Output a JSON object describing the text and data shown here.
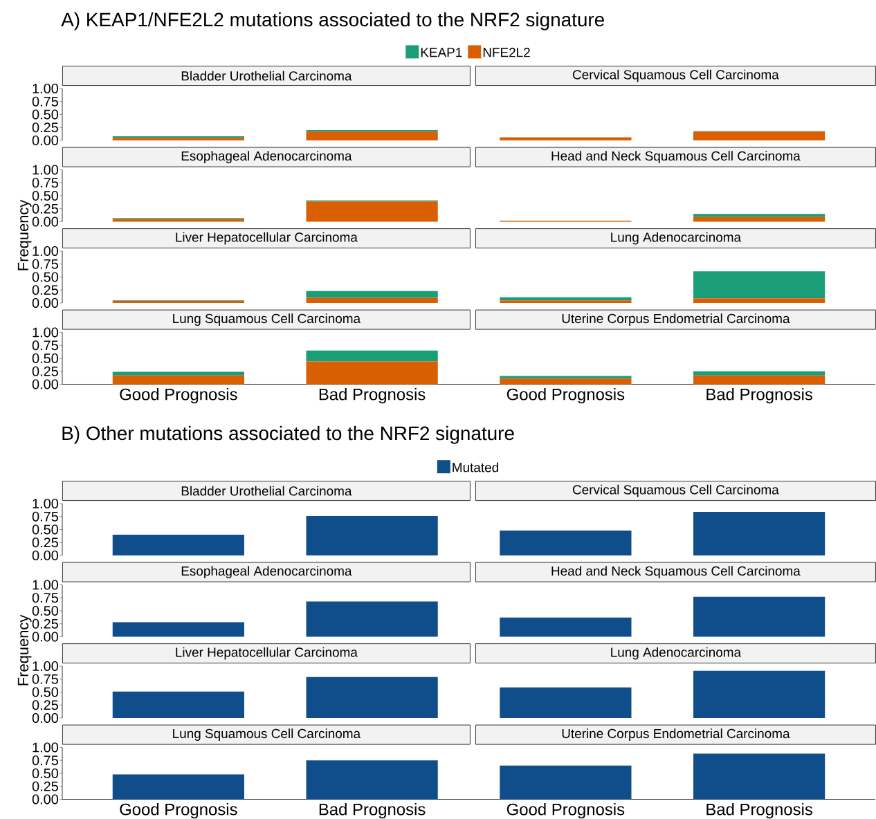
{
  "chart_data": [
    {
      "type": "bar",
      "title": "A) KEAP1/NFE2L2 mutations associated to the NRF2 signature",
      "annotations": [
        "Bladder Urothelial Carcinoma",
        "Cervical Squamous Cell Carcinoma"
      ],
      "categories": [
        null,
        null,
        null,
        null
      ],
      "stacked": true,
      "legend": "top",
      "series": [
        {
          "name": "NFE2L2",
          "color": "#d95f02",
          "values": [
            0.05,
            0.17,
            0.06,
            0.17
          ]
        },
        {
          "name": "KEAP1",
          "color": "#1b9e77",
          "values": [
            0.03,
            0.03,
            0,
            0.01
          ]
        }
      ],
      "ylim": [
        0,
        1
      ],
      "yticks": [
        {
          "value": 0,
          "label": "0.00"
        },
        {
          "value": 0.25,
          "label": "0.25"
        },
        {
          "value": 0.5,
          "label": "0.50"
        },
        {
          "value": 0.75,
          "label": "0.75"
        },
        {
          "value": 1,
          "label": "1.00"
        }
      ],
      "tick_labels": "y"
    },
    {
      "type": "bar",
      "annotations": [
        "Esophageal Adenocarcinoma",
        "Head and Neck Squamous Cell Carcinoma"
      ],
      "categories": [
        null,
        null,
        null,
        null
      ],
      "stacked": true,
      "series": [
        {
          "color": "#d95f02",
          "values": [
            0.05,
            0.39,
            0.02,
            0.09
          ]
        },
        {
          "color": "#1b9e77",
          "values": [
            0.02,
            0.02,
            0,
            0.06
          ]
        }
      ],
      "ylim": [
        0,
        1
      ],
      "yticks": [
        {
          "value": 0,
          "label": "0.00"
        },
        {
          "value": 0.25,
          "label": "0.25"
        },
        {
          "value": 0.5,
          "label": "0.50"
        },
        {
          "value": 0.75,
          "label": "0.75"
        },
        {
          "value": 1,
          "label": "1.00"
        }
      ],
      "tick_labels": "y"
    },
    {
      "type": "bar",
      "ylabel": "Frequency",
      "annotations": [
        "Liver Hepatocellular Carcinoma",
        "Lung Adenocarcinoma"
      ],
      "categories": [
        null,
        null,
        null,
        null
      ],
      "stacked": true,
      "series": [
        {
          "color": "#d95f02",
          "values": [
            0.04,
            0.1,
            0.05,
            0.09
          ]
        },
        {
          "color": "#1b9e77",
          "values": [
            0.01,
            0.13,
            0.06,
            0.52
          ]
        }
      ],
      "ylim": [
        0,
        1
      ],
      "yticks": [
        {
          "value": 0,
          "label": "0.00"
        },
        {
          "value": 0.25,
          "label": "0.25"
        },
        {
          "value": 0.5,
          "label": "0.50"
        },
        {
          "value": 0.75,
          "label": "0.75"
        },
        {
          "value": 1,
          "label": "1.00"
        }
      ],
      "tick_labels": "y"
    },
    {
      "type": "bar",
      "annotations": [
        "Lung Squamous Cell Carcinoma",
        "Uterine Corpus Endometrial Carcinoma"
      ],
      "categories": [
        "Good Prognosis",
        "Bad Prognosis",
        "Good Prognosis",
        "Bad Prognosis"
      ],
      "stacked": true,
      "series": [
        {
          "color": "#d95f02",
          "values": [
            0.17,
            0.44,
            0.11,
            0.17
          ]
        },
        {
          "color": "#1b9e77",
          "values": [
            0.07,
            0.21,
            0.05,
            0.08
          ]
        }
      ],
      "ylim": [
        0,
        1
      ],
      "yticks": [
        {
          "value": 0,
          "label": "0.00"
        },
        {
          "value": 0.25,
          "label": "0.25"
        },
        {
          "value": 0.5,
          "label": "0.50"
        },
        {
          "value": 0.75,
          "label": "0.75"
        },
        {
          "value": 1,
          "label": "1.00"
        }
      ]
    },
    {
      "type": "bar",
      "title": "B) Other mutations associated to the NRF2 signature",
      "annotations": [
        "Bladder Urothelial Carcinoma",
        "Cervical Squamous Cell Carcinoma"
      ],
      "categories": [
        null,
        null,
        null,
        null
      ],
      "legend": "top",
      "series": [
        {
          "name": "Mutated",
          "color": "#104e8b",
          "values": [
            0.4,
            0.76,
            0.48,
            0.84
          ]
        }
      ],
      "ylim": [
        0,
        1
      ],
      "yticks": [
        {
          "value": 0,
          "label": "0.00"
        },
        {
          "value": 0.25,
          "label": "0.25"
        },
        {
          "value": 0.5,
          "label": "0.50"
        },
        {
          "value": 0.75,
          "label": "0.75"
        },
        {
          "value": 1,
          "label": "1.00"
        }
      ],
      "tick_labels": "y"
    },
    {
      "type": "bar",
      "annotations": [
        "Esophageal Adenocarcinoma",
        "Head and Neck Squamous Cell Carcinoma"
      ],
      "categories": [
        null,
        null,
        null,
        null
      ],
      "series": [
        {
          "color": "#104e8b",
          "values": [
            0.28,
            0.68,
            0.37,
            0.77
          ]
        }
      ],
      "ylim": [
        0,
        1
      ],
      "yticks": [
        {
          "value": 0,
          "label": "0.00"
        },
        {
          "value": 0.25,
          "label": "0.25"
        },
        {
          "value": 0.5,
          "label": "0.50"
        },
        {
          "value": 0.75,
          "label": "0.75"
        },
        {
          "value": 1,
          "label": "1.00"
        }
      ],
      "tick_labels": "y"
    },
    {
      "type": "bar",
      "ylabel": "Frequency",
      "annotations": [
        "Liver Hepatocellular Carcinoma",
        "Lung Adenocarcinoma"
      ],
      "categories": [
        null,
        null,
        null,
        null
      ],
      "series": [
        {
          "color": "#104e8b",
          "values": [
            0.51,
            0.79,
            0.59,
            0.91
          ]
        }
      ],
      "ylim": [
        0,
        1
      ],
      "yticks": [
        {
          "value": 0,
          "label": "0.00"
        },
        {
          "value": 0.25,
          "label": "0.25"
        },
        {
          "value": 0.5,
          "label": "0.50"
        },
        {
          "value": 0.75,
          "label": "0.75"
        },
        {
          "value": 1,
          "label": "1.00"
        }
      ],
      "tick_labels": "y"
    },
    {
      "type": "bar",
      "annotations": [
        "Lung Squamous Cell Carcinoma",
        "Uterine Corpus Endometrial Carcinoma"
      ],
      "categories": [
        "Good Prognosis",
        "Bad Prognosis",
        "Good Prognosis",
        "Bad Prognosis"
      ],
      "series": [
        {
          "color": "#104e8b",
          "values": [
            0.48,
            0.75,
            0.65,
            0.88
          ]
        }
      ],
      "ylim": [
        0,
        1
      ],
      "yticks": [
        {
          "value": 0,
          "label": "0.00"
        },
        {
          "value": 0.25,
          "label": "0.25"
        },
        {
          "value": 0.5,
          "label": "0.50"
        },
        {
          "value": 0.75,
          "label": "0.75"
        },
        {
          "value": 1,
          "label": "1.00"
        }
      ]
    }
  ]
}
